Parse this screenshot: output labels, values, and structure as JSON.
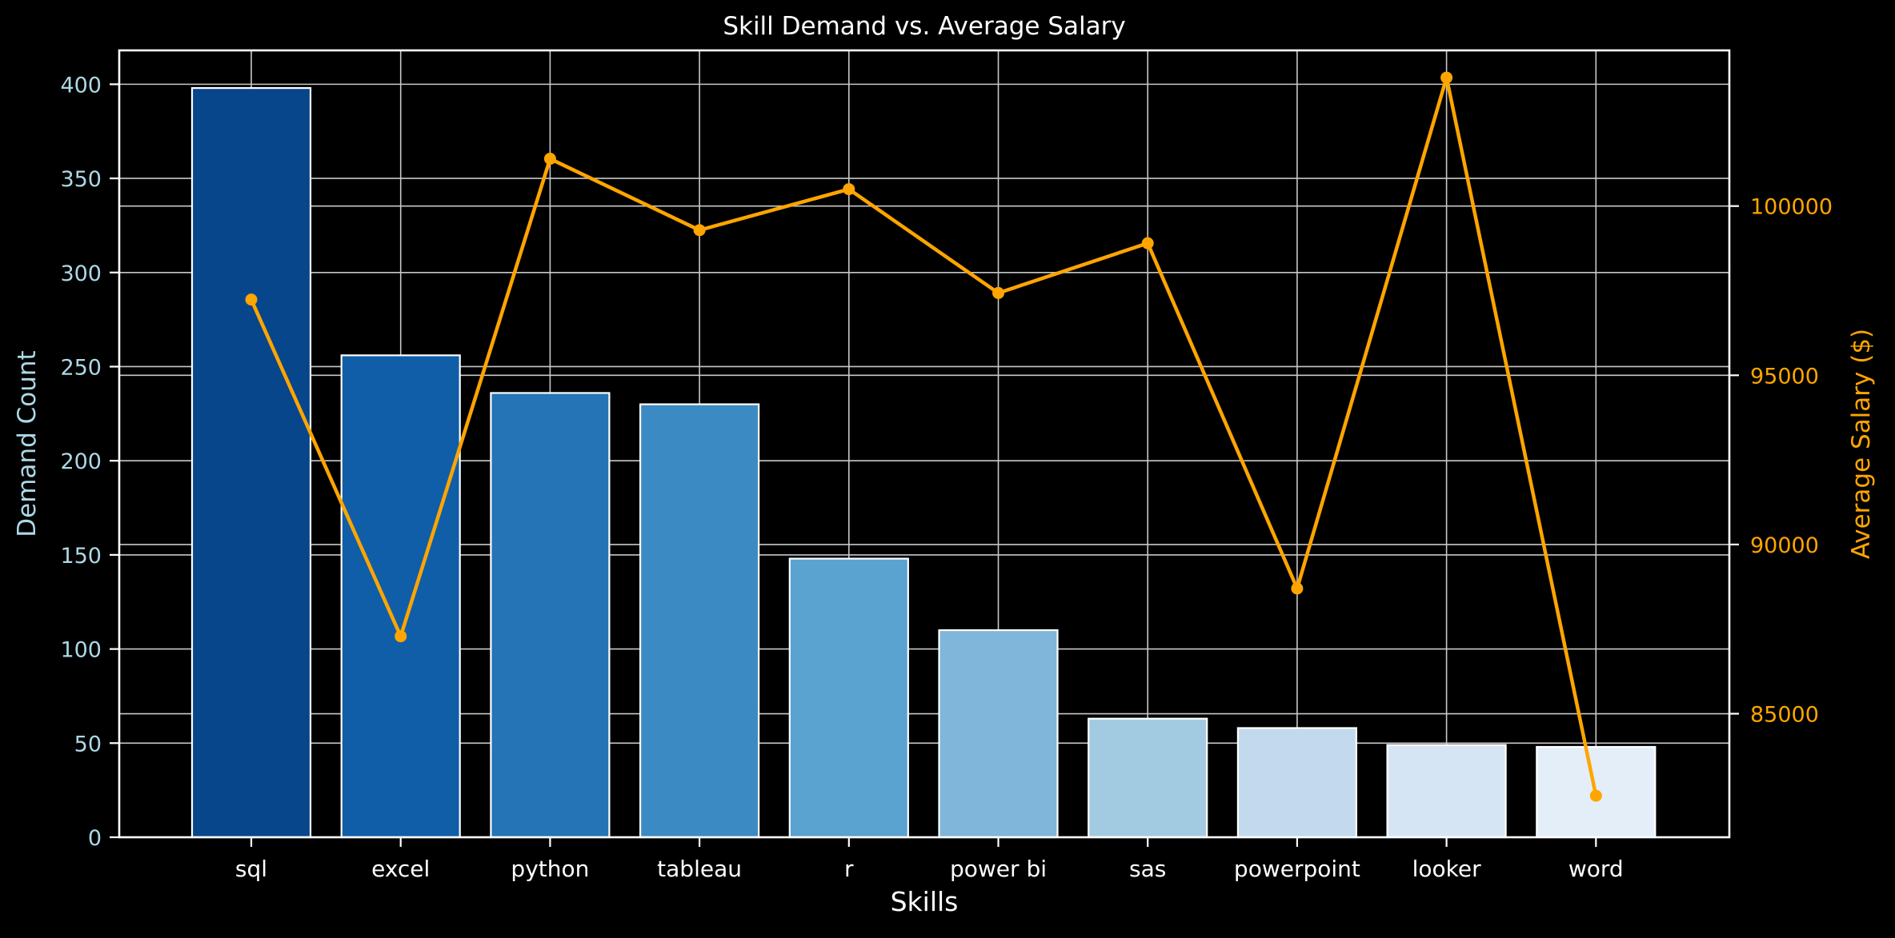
{
  "chart_data": {
    "type": "bar",
    "title": "Skill Demand vs. Average Salary",
    "xlabel": "Skills",
    "ylabel": "Demand Count",
    "y2label": "Average Salary ($)",
    "categories": [
      "sql",
      "excel",
      "python",
      "tableau",
      "r",
      "power bi",
      "sas",
      "powerpoint",
      "looker",
      "word"
    ],
    "ylim": [
      0,
      418
    ],
    "yticks": [
      0,
      50,
      100,
      150,
      200,
      250,
      300,
      350,
      400
    ],
    "y2lim": [
      81350,
      104600
    ],
    "y2ticks": [
      85000,
      90000,
      95000,
      100000
    ],
    "grid": true,
    "series": [
      {
        "axis": "left",
        "type": "bar",
        "values": [
          398,
          256,
          236,
          230,
          148,
          110,
          63,
          58,
          49,
          48
        ],
        "colors": [
          "#08468c",
          "#105ea8",
          "#2474b6",
          "#3c8ac4",
          "#5aa2cf",
          "#7fb6d9",
          "#a2cbe2",
          "#c2d9ee",
          "#d5e5f3",
          "#e4eef9"
        ]
      },
      {
        "axis": "right",
        "type": "line",
        "values": [
          97237,
          87288,
          101397,
          99288,
          100499,
          97431,
          98902,
          88701,
          103795,
          82576
        ],
        "color": "#ffa500"
      }
    ],
    "colors": {
      "background": "#000000",
      "frame": "#ffffff",
      "grid": "#c8c8c8",
      "left_axis_text": "#add8e6",
      "right_axis_text": "#ffa500",
      "text": "#ffffff",
      "bar_edge": "#ffffff"
    }
  }
}
